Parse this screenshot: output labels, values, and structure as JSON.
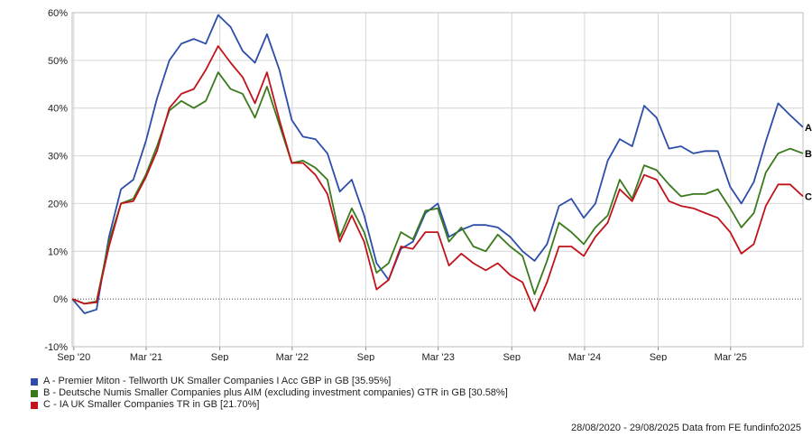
{
  "chart_data": {
    "type": "line",
    "title": "",
    "xlabel": "",
    "ylabel": "",
    "ylim": [
      -10,
      60
    ],
    "y_ticks": [
      -10,
      0,
      10,
      20,
      30,
      40,
      50,
      60
    ],
    "y_tick_labels": [
      "-10%",
      "0%",
      "10%",
      "20%",
      "30%",
      "40%",
      "50%",
      "60%"
    ],
    "x_range": [
      "2020-08-28",
      "2025-08-29"
    ],
    "x_ticks": [
      {
        "date": "2020-09-01",
        "label": "Sep '20"
      },
      {
        "date": "2021-03-01",
        "label": "Mar '21"
      },
      {
        "date": "2021-09-01",
        "label": "Sep"
      },
      {
        "date": "2022-03-01",
        "label": "Mar '22"
      },
      {
        "date": "2022-09-01",
        "label": "Sep"
      },
      {
        "date": "2023-03-01",
        "label": "Mar '23"
      },
      {
        "date": "2023-09-01",
        "label": "Sep"
      },
      {
        "date": "2024-03-01",
        "label": "Mar '24"
      },
      {
        "date": "2024-09-01",
        "label": "Sep"
      },
      {
        "date": "2025-03-01",
        "label": "Mar '25"
      }
    ],
    "grid": true,
    "zero_line": "dotted",
    "legend_position": "bottom-left",
    "x": [
      "2020-08-28",
      "2020-09-28",
      "2020-10-28",
      "2020-11-28",
      "2020-12-28",
      "2021-01-28",
      "2021-02-28",
      "2021-03-28",
      "2021-04-28",
      "2021-05-28",
      "2021-06-28",
      "2021-07-28",
      "2021-08-28",
      "2021-09-28",
      "2021-10-28",
      "2021-11-28",
      "2021-12-28",
      "2022-01-28",
      "2022-02-28",
      "2022-03-28",
      "2022-04-28",
      "2022-05-28",
      "2022-06-28",
      "2022-07-28",
      "2022-08-28",
      "2022-09-28",
      "2022-10-28",
      "2022-11-28",
      "2022-12-28",
      "2023-01-28",
      "2023-02-28",
      "2023-03-28",
      "2023-04-28",
      "2023-05-28",
      "2023-06-28",
      "2023-07-28",
      "2023-08-28",
      "2023-09-28",
      "2023-10-28",
      "2023-11-28",
      "2023-12-28",
      "2024-01-28",
      "2024-02-28",
      "2024-03-28",
      "2024-04-28",
      "2024-05-28",
      "2024-06-28",
      "2024-07-28",
      "2024-08-28",
      "2024-09-28",
      "2024-10-28",
      "2024-11-28",
      "2024-12-28",
      "2025-01-28",
      "2025-02-28",
      "2025-03-28",
      "2025-04-28",
      "2025-05-28",
      "2025-06-28",
      "2025-07-28",
      "2025-08-29"
    ],
    "series": [
      {
        "name": "A - Premier Miton - Tellworth UK Smaller Companies I Acc GBP in GB [35.95%]",
        "marker": "A",
        "color": "#2c4ea8",
        "values": [
          0,
          -3,
          -2.2,
          13,
          23,
          25,
          33,
          42,
          50,
          53.5,
          54.5,
          53.5,
          59.5,
          57,
          52,
          49.5,
          55.5,
          48,
          37.5,
          34,
          33.5,
          30.5,
          22.5,
          25,
          17.5,
          7.5,
          4,
          10.5,
          12,
          18,
          20,
          13,
          14.5,
          15.5,
          15.5,
          15,
          13,
          10,
          8,
          11.5,
          19.5,
          21,
          17,
          20,
          29,
          33.5,
          32,
          40.5,
          38,
          31.5,
          32,
          30.5,
          31,
          31,
          23.5,
          20,
          24.5,
          33,
          41,
          38.5,
          36
        ]
      },
      {
        "name": "B - Deutsche Numis Smaller Companies plus AIM (excluding investment companies) GTR in GB [30.58%]",
        "marker": "B",
        "color": "#3a7a1d",
        "values": [
          0,
          -1,
          -0.5,
          12,
          20,
          21,
          26,
          32,
          39.5,
          41.5,
          40,
          41.5,
          47.5,
          44,
          43,
          38,
          44.5,
          36.5,
          28.5,
          29,
          27.5,
          25,
          13,
          19,
          14,
          5.5,
          7.5,
          14,
          12.5,
          18.5,
          19,
          12,
          15,
          11,
          10,
          13.5,
          11,
          9,
          1,
          8,
          16,
          14,
          11.5,
          15,
          17.5,
          25,
          21,
          28,
          27,
          24,
          21.5,
          22,
          22,
          23,
          19,
          15,
          18,
          26.5,
          30.5,
          31.5,
          30.5
        ]
      },
      {
        "name": "C - IA UK Smaller Companies TR in GB [21.70%]",
        "marker": "C",
        "color": "#c0131b",
        "values": [
          0,
          -1,
          -0.7,
          11,
          20,
          20.5,
          25.5,
          31,
          40,
          43,
          44,
          48,
          53,
          49.5,
          46.5,
          41,
          47.5,
          37.5,
          28.5,
          28.5,
          26,
          22,
          12,
          17.5,
          12,
          2,
          4,
          11,
          10.5,
          14,
          14,
          7,
          9.5,
          7.5,
          6,
          7.5,
          5,
          3.5,
          -2.5,
          3.5,
          11,
          11,
          9,
          13,
          16,
          23,
          20.5,
          26,
          25,
          20.5,
          19.5,
          19,
          18,
          17,
          14,
          9.5,
          11.5,
          19.5,
          24,
          24,
          21.5
        ]
      }
    ]
  },
  "legend": {
    "items": [
      {
        "label": "A - Premier Miton - Tellworth UK Smaller Companies I Acc GBP in GB [35.95%]",
        "color": "#2c4ea8"
      },
      {
        "label": "B - Deutsche Numis Smaller Companies plus AIM (excluding investment companies) GTR in GB [30.58%]",
        "color": "#3a7a1d"
      },
      {
        "label": "C - IA UK Smaller Companies TR in GB [21.70%]",
        "color": "#c0131b"
      }
    ]
  },
  "footer": {
    "text": "28/08/2020 - 29/08/2025 Data from FE fundinfo2025"
  }
}
